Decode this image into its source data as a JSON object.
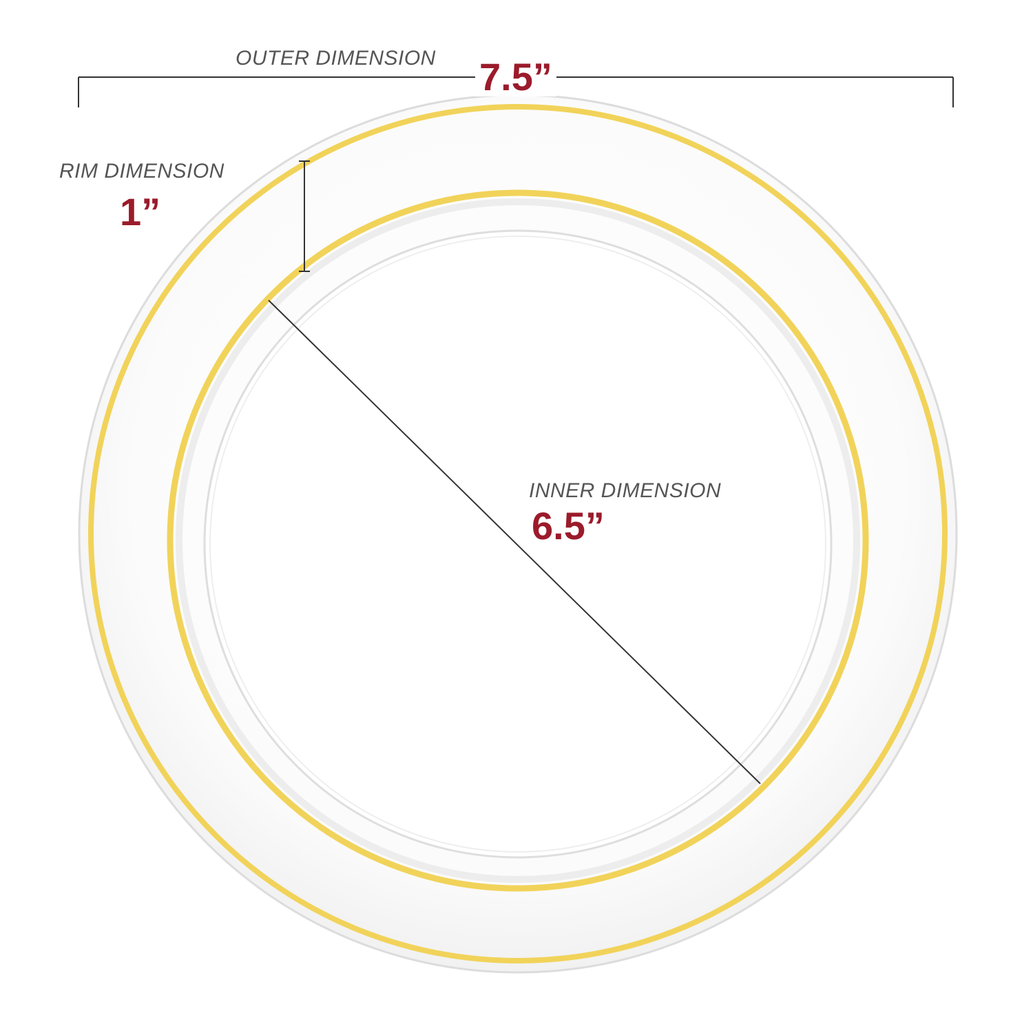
{
  "outer": {
    "title": "OUTER DIMENSION",
    "value": "7.5”"
  },
  "rim": {
    "title": "RIM DIMENSION",
    "value": "1”"
  },
  "inner": {
    "title": "INNER DIMENSION",
    "value": "6.5”"
  },
  "colors": {
    "value_text": "#9b1b2b",
    "title_text": "#555555",
    "gold_band": "#f1d35a",
    "plate_edge": "#dcdcdc",
    "measure_line": "#333333"
  }
}
